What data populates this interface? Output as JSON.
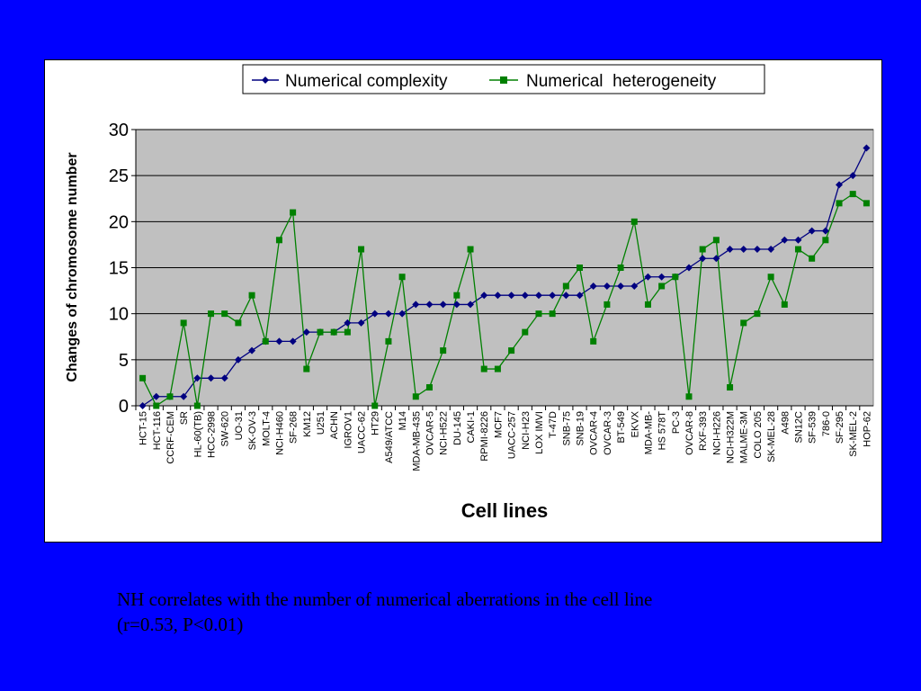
{
  "chart_data": {
    "type": "line",
    "title": "",
    "xlabel": "Cell lines",
    "ylabel": "Changes of chromosome number",
    "ylim": [
      0,
      30
    ],
    "yticks": [
      0,
      5,
      10,
      15,
      20,
      25,
      30
    ],
    "grid": "horizontal",
    "legend": "top-right",
    "categories": [
      "HCT-15",
      "HCT-116",
      "CCRF-CEM",
      "SR",
      "HL-60(TB)",
      "HCC-2998",
      "SW-620",
      "UO-31",
      "SK-OV-3",
      "MOLT-4",
      "NCI-H460",
      "SF-268",
      "KM12",
      "U251",
      "ACHN",
      "IGROV1",
      "UACC-62",
      "HT29",
      "A549/ATCC",
      "M14",
      "MDA-MB-435",
      "OVCAR-5",
      "NCI-H522",
      "DU-145",
      "CAKI-1",
      "RPMI-8226",
      "MCF7",
      "UACC-257",
      "NCI-H23",
      "LOX IMVI",
      "T-47D",
      "SNB-75",
      "SNB-19",
      "OVCAR-4",
      "OVCAR-3",
      "BT-549",
      "EKVX",
      "MDA-MB-",
      "HS 578T",
      "PC-3",
      "OVCAR-8",
      "RXF-393",
      "NCI-H226",
      "NCI-H322M",
      "MALME-3M",
      "COLO 205",
      "SK-MEL-28",
      "A498",
      "SN12C",
      "SF-539",
      "786-0",
      "SF-295",
      "SK-MEL-2",
      "HOP-62"
    ],
    "series": [
      {
        "name": "Numerical complexity",
        "color": "#000080",
        "marker": "diamond",
        "values": [
          0,
          1,
          1,
          1,
          3,
          3,
          3,
          5,
          6,
          7,
          7,
          7,
          8,
          8,
          8,
          9,
          9,
          10,
          10,
          10,
          11,
          11,
          11,
          11,
          11,
          12,
          12,
          12,
          12,
          12,
          12,
          12,
          12,
          13,
          13,
          13,
          13,
          14,
          14,
          14,
          15,
          16,
          16,
          17,
          17,
          17,
          17,
          18,
          18,
          19,
          19,
          24,
          25,
          28
        ]
      },
      {
        "name": "Numerical  heterogeneity",
        "color": "#008000",
        "marker": "square",
        "values": [
          3,
          0,
          1,
          9,
          0,
          10,
          10,
          9,
          12,
          7,
          18,
          21,
          4,
          8,
          8,
          8,
          17,
          0,
          7,
          14,
          1,
          2,
          6,
          12,
          17,
          4,
          4,
          6,
          8,
          10,
          10,
          13,
          15,
          7,
          11,
          15,
          20,
          11,
          13,
          14,
          1,
          17,
          18,
          2,
          9,
          10,
          14,
          11,
          17,
          16,
          18,
          22,
          23,
          22
        ]
      }
    ]
  },
  "caption": {
    "line1": "NH correlates with the number of numerical aberrations in the cell line",
    "line2": "(r=0.53, P<0.01)"
  }
}
